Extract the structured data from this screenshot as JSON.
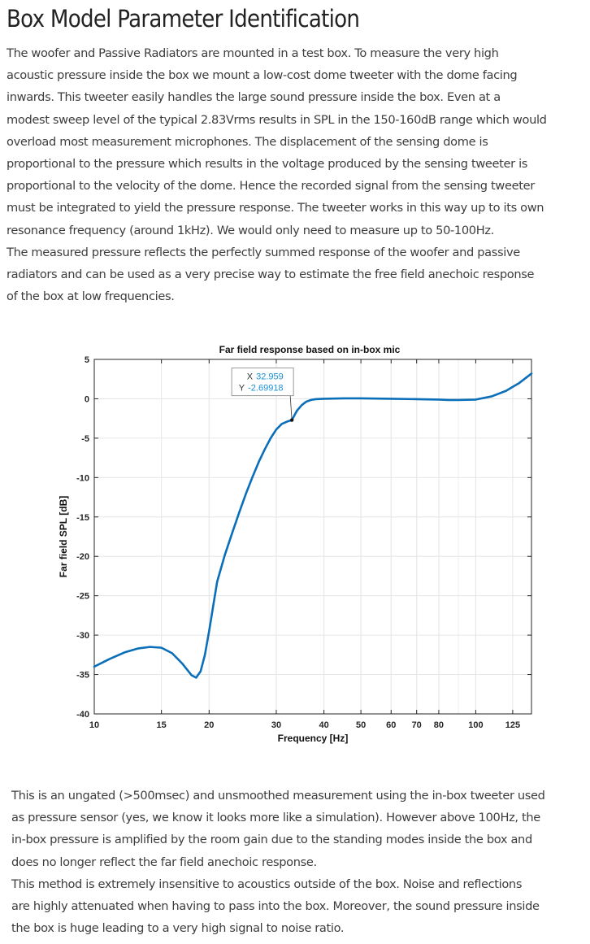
{
  "heading": "Box Model Parameter Identification",
  "intro_lines": [
    "The woofer and Passive Radiators are mounted in a test box. To measure the very high",
    "acoustic pressure inside the box we mount a low-cost dome tweeter with the dome facing",
    "inwards. This tweeter easily handles the large sound pressure inside the box. Even at a",
    "modest sweep level of the typical 2.83Vrms results in SPL in the 150-160dB range which would",
    "overload most measurement microphones. The displacement of the sensing dome is",
    "proportional to the pressure which results in the voltage produced by the sensing tweeter is",
    "proportional to the velocity of the dome. Hence the recorded signal from the sensing tweeter",
    "must be integrated to yield the pressure response. The tweeter works in this way up to its own",
    "resonance frequency (around 1kHz). We would only need to measure up to 50-100Hz.",
    "The measured pressure reflects the perfectly summed response of the woofer and passive",
    "radiators and can be used as a very precise way to estimate the free field anechoic response",
    "of the box at low frequencies."
  ],
  "outro_lines": [
    "This is an ungated (>500msec) and unsmoothed measurement using the in-box tweeter used",
    "as pressure sensor (yes, we know it looks more like a simulation). However above 100Hz, the",
    "in-box pressure is amplified by the room gain due to the standing modes inside the box and",
    "does no longer reflect the far field anechoic response.",
    "This method is extremely insensitive to acoustics outside of the box. Noise and reflections",
    "are highly attenuated when having to pass into the box. Moreover, the sound pressure inside",
    "the box is huge leading to a very high signal to noise ratio."
  ],
  "colors": {
    "series": "#0b6eb8",
    "datatip_value": "#1a8fd6",
    "grid": "#e6e6e6"
  },
  "chart_data": {
    "type": "line",
    "title": "Far field response based on in-box mic",
    "xlabel": "Frequency [Hz]",
    "ylabel": "Far field SPL [dB]",
    "x_scale": "log",
    "xlim": [
      10,
      140
    ],
    "ylim": [
      -40,
      5
    ],
    "x_ticks": [
      10,
      15,
      20,
      30,
      40,
      50,
      60,
      70,
      80,
      100,
      125
    ],
    "x_tick_labels": [
      "10",
      "15",
      "20",
      "30",
      "40",
      "50",
      "60",
      "70",
      "80",
      "100",
      "125"
    ],
    "y_ticks": [
      5,
      0,
      -5,
      -10,
      -15,
      -20,
      -25,
      -30,
      -35,
      -40
    ],
    "y_tick_labels": [
      "5",
      "0",
      "-5",
      "-10",
      "-15",
      "-20",
      "-25",
      "-30",
      "-35",
      "-40"
    ],
    "grid": true,
    "series": [
      {
        "x": [
          10,
          11,
          12,
          13,
          14,
          15,
          16,
          17,
          18,
          18.5,
          19,
          19.5,
          20,
          20.5,
          21,
          22,
          23,
          24,
          25,
          26,
          27,
          28,
          29,
          30,
          31,
          32,
          32.959,
          34,
          35,
          36,
          37,
          38,
          40,
          45,
          50,
          60,
          70,
          80,
          85,
          90,
          100,
          110,
          120,
          130,
          140
        ],
        "y": [
          -34.0,
          -33.0,
          -32.2,
          -31.7,
          -31.5,
          -31.6,
          -32.3,
          -33.6,
          -35.1,
          -35.4,
          -34.6,
          -32.5,
          -29.5,
          -26.3,
          -23.2,
          -19.8,
          -17.0,
          -14.4,
          -12.0,
          -9.9,
          -8.0,
          -6.4,
          -5.0,
          -3.9,
          -3.2,
          -2.9,
          -2.69918,
          -1.5,
          -0.8,
          -0.35,
          -0.15,
          -0.05,
          0.0,
          0.05,
          0.05,
          0.0,
          -0.05,
          -0.1,
          -0.15,
          -0.15,
          -0.1,
          0.3,
          1.0,
          2.0,
          3.2
        ]
      }
    ],
    "datatip": {
      "x_label": "X",
      "x_value": "32.959",
      "y_label": "Y",
      "y_value": "-2.69918"
    }
  }
}
